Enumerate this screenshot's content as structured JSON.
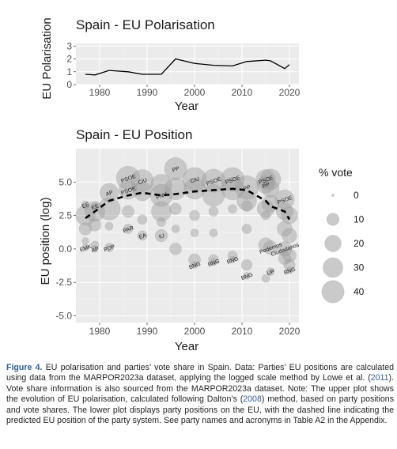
{
  "chart_data": [
    {
      "type": "line",
      "title": "Spain - EU Polarisation",
      "xlabel": "Year",
      "ylabel": "EU Polarisation",
      "xlim": [
        1975,
        2022
      ],
      "ylim": [
        0,
        3.2
      ],
      "xticks": [
        1980,
        1990,
        2000,
        2010,
        2020
      ],
      "yticks": [
        0,
        1,
        2,
        3
      ],
      "grid": true,
      "x": [
        1977,
        1979,
        1982,
        1986,
        1989,
        1993,
        1996,
        2000,
        2004,
        2008,
        2011,
        2015,
        2016,
        2019,
        2020
      ],
      "values": [
        0.8,
        0.75,
        1.1,
        1.0,
        0.8,
        0.8,
        2.0,
        1.65,
        1.5,
        1.45,
        1.8,
        1.9,
        1.85,
        1.25,
        1.55
      ]
    },
    {
      "type": "scatter",
      "title": "Spain - EU Position",
      "xlabel": "Year",
      "ylabel": "EU position (log)",
      "xlim": [
        1975,
        2022
      ],
      "ylim": [
        -5.5,
        7.5
      ],
      "xticks": [
        1980,
        1990,
        2000,
        2010,
        2020
      ],
      "yticks": [
        -5.0,
        -2.5,
        0.0,
        2.5,
        5.0
      ],
      "ytick_labels": [
        "-5.0",
        "-2.5",
        "0.0",
        "2.5",
        "5.0"
      ],
      "grid": true,
      "legend": {
        "title": "% vote",
        "placement": "right",
        "sizes": [
          0,
          10,
          20,
          30,
          40
        ],
        "labels": [
          "0",
          "10",
          "20",
          "30",
          "40"
        ]
      },
      "points": [
        {
          "x": 1977,
          "y": 2.5,
          "vote": 29
        },
        {
          "x": 1977,
          "y": 3.3,
          "vote": 3,
          "label": "EE"
        },
        {
          "x": 1977,
          "y": 1.5,
          "vote": 10
        },
        {
          "x": 1977,
          "y": 0.6,
          "vote": 2
        },
        {
          "x": 1977,
          "y": 0.1,
          "vote": 2,
          "label": "EMK"
        },
        {
          "x": 1979,
          "y": 2.8,
          "vote": 30
        },
        {
          "x": 1979,
          "y": 3.2,
          "vote": 2,
          "label": "EE"
        },
        {
          "x": 1979,
          "y": 1.8,
          "vote": 10
        },
        {
          "x": 1979,
          "y": 0.3,
          "vote": 3
        },
        {
          "x": 1979,
          "y": 0.0,
          "vote": 2,
          "label": "AP"
        },
        {
          "x": 1982,
          "y": 4.2,
          "vote": 26,
          "label": "AP"
        },
        {
          "x": 1982,
          "y": 3.0,
          "vote": 40
        },
        {
          "x": 1982,
          "y": 0.1,
          "vote": 4,
          "label": "PDP"
        },
        {
          "x": 1982,
          "y": 1.7,
          "vote": 3
        },
        {
          "x": 1986,
          "y": 4.4,
          "vote": 26,
          "label": "PSOE"
        },
        {
          "x": 1986,
          "y": 5.3,
          "vote": 44,
          "label": "PSOE"
        },
        {
          "x": 1986,
          "y": 2.8,
          "vote": 9
        },
        {
          "x": 1986,
          "y": 1.5,
          "vote": 5,
          "label": "PAR"
        },
        {
          "x": 1989,
          "y": 5.1,
          "vote": 39,
          "label": "CiU"
        },
        {
          "x": 1989,
          "y": 4.3,
          "vote": 26
        },
        {
          "x": 1989,
          "y": 1.0,
          "vote": 5,
          "label": "EA"
        },
        {
          "x": 1989,
          "y": 2.2,
          "vote": 5
        },
        {
          "x": 1993,
          "y": 4.8,
          "vote": 34
        },
        {
          "x": 1993,
          "y": 4.0,
          "vote": 39,
          "label": "PNV"
        },
        {
          "x": 1993,
          "y": 2.8,
          "vote": 30
        },
        {
          "x": 1993,
          "y": 1.0,
          "vote": 10,
          "label": "IU"
        },
        {
          "x": 1993,
          "y": 2.0,
          "vote": 4
        },
        {
          "x": 1996,
          "y": 6.0,
          "vote": 39,
          "label": "PP"
        },
        {
          "x": 1996,
          "y": 4.5,
          "vote": 38
        },
        {
          "x": 1996,
          "y": 3.0,
          "vote": 8
        },
        {
          "x": 1996,
          "y": 0.0,
          "vote": 9
        },
        {
          "x": 1996,
          "y": 1.5,
          "vote": 3
        },
        {
          "x": 2000,
          "y": 5.2,
          "vote": 45,
          "label": "CiU"
        },
        {
          "x": 2000,
          "y": 4.5,
          "vote": 34
        },
        {
          "x": 2000,
          "y": 2.5,
          "vote": 6
        },
        {
          "x": 2000,
          "y": -0.8,
          "vote": 9
        },
        {
          "x": 2000,
          "y": -1.2,
          "vote": 2,
          "label": "BNG"
        },
        {
          "x": 2000,
          "y": 1.2,
          "vote": 3
        },
        {
          "x": 2004,
          "y": 5.1,
          "vote": 43,
          "label": "PSOE"
        },
        {
          "x": 2004,
          "y": 4.0,
          "vote": 38
        },
        {
          "x": 2004,
          "y": 2.8,
          "vote": 5
        },
        {
          "x": 2004,
          "y": -0.8,
          "vote": 6
        },
        {
          "x": 2004,
          "y": -1.0,
          "vote": 2,
          "label": "BNG"
        },
        {
          "x": 2004,
          "y": 1.2,
          "vote": 3
        },
        {
          "x": 2008,
          "y": 5.2,
          "vote": 44,
          "label": "PSOE"
        },
        {
          "x": 2008,
          "y": 4.5,
          "vote": 40
        },
        {
          "x": 2008,
          "y": 3.0,
          "vote": 4
        },
        {
          "x": 2008,
          "y": -0.5,
          "vote": 5
        },
        {
          "x": 2008,
          "y": -0.8,
          "vote": 2,
          "label": "BNG"
        },
        {
          "x": 2011,
          "y": 4.6,
          "vote": 45,
          "label": "PP"
        },
        {
          "x": 2011,
          "y": 3.6,
          "vote": 29
        },
        {
          "x": 2011,
          "y": 3.2,
          "vote": 7
        },
        {
          "x": 2011,
          "y": 1.5,
          "vote": 5
        },
        {
          "x": 2011,
          "y": -1.2,
          "vote": 7
        },
        {
          "x": 2011,
          "y": -2.0,
          "vote": 2,
          "label": "BNG"
        },
        {
          "x": 2015,
          "y": 5.2,
          "vote": 29,
          "label": "PSOE"
        },
        {
          "x": 2015,
          "y": 4.8,
          "vote": 22,
          "label": "PP"
        },
        {
          "x": 2015,
          "y": 3.0,
          "vote": 21
        },
        {
          "x": 2015,
          "y": 0.3,
          "vote": 14
        },
        {
          "x": 2015,
          "y": 2.5,
          "vote": 4
        },
        {
          "x": 2015,
          "y": -2.2,
          "vote": 3
        },
        {
          "x": 2016,
          "y": 5.2,
          "vote": 33
        },
        {
          "x": 2016,
          "y": 4.5,
          "vote": 22
        },
        {
          "x": 2016,
          "y": 3.4,
          "vote": 21
        },
        {
          "x": 2016,
          "y": 0.1,
          "vote": 13,
          "label": "Podemos"
        },
        {
          "x": 2016,
          "y": -1.7,
          "vote": 3,
          "label": "UP"
        },
        {
          "x": 2019,
          "y": 3.7,
          "vote": 28,
          "label": "PSOE"
        },
        {
          "x": 2019,
          "y": 2.8,
          "vote": 21
        },
        {
          "x": 2019,
          "y": 1.5,
          "vote": 16
        },
        {
          "x": 2019,
          "y": 0.0,
          "vote": 15,
          "label": "Ciudadanos"
        },
        {
          "x": 2019,
          "y": -0.7,
          "vote": 10
        },
        {
          "x": 2020,
          "y": 2.5,
          "vote": 20
        },
        {
          "x": 2020,
          "y": 1.0,
          "vote": 15
        },
        {
          "x": 2020,
          "y": -0.5,
          "vote": 12
        },
        {
          "x": 2020,
          "y": -1.2,
          "vote": 8
        },
        {
          "x": 2020,
          "y": -1.6,
          "vote": 2,
          "label": "BNG"
        }
      ],
      "predicted_line": {
        "style": "dashed",
        "x": [
          1977,
          1979,
          1982,
          1986,
          1989,
          1993,
          1996,
          2000,
          2004,
          2008,
          2011,
          2015,
          2016,
          2019,
          2020
        ],
        "values": [
          2.3,
          2.8,
          3.6,
          4.0,
          4.2,
          4.0,
          4.1,
          4.3,
          4.4,
          4.5,
          4.4,
          3.6,
          3.2,
          2.8,
          2.2
        ]
      }
    }
  ],
  "caption": {
    "label": "Figure 4.",
    "seg1": " EU polarisation and parties’ vote share in Spain. Data: Parties’ EU positions are calculated using data from the MARPOR2023a dataset, applying the logged scale method by Lowe et al. (",
    "ref1": "2011",
    "seg2": "). Vote share information is also sourced from the MARPOR2023a dataset. Note: The upper plot shows the evolution of EU polarisation, calculated following Dalton’s (",
    "ref2": "2008",
    "seg3": ") method, based on party positions and vote shares. The lower plot displays party positions on the EU, with the dashed line indicating the predicted EU position of the party system. See party names and acronyms in Table A2 in the Appendix."
  }
}
